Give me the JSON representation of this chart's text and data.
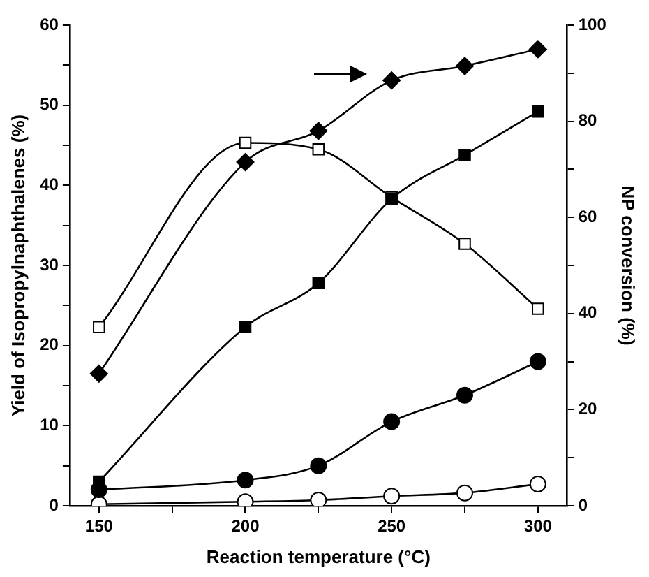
{
  "chart_data": {
    "type": "line",
    "xlabel": "Reaction temperature (°C)",
    "ylabel": "Yield of Isopropylnaphthalenes (%)",
    "y2label": "NP conversion (%)",
    "x": [
      150,
      200,
      225,
      250,
      275,
      300
    ],
    "xlim": [
      140,
      310
    ],
    "xticks": [
      150,
      {
        "value": 175,
        "label": null
      },
      200,
      {
        "value": 225,
        "label": null
      },
      250,
      {
        "value": 275,
        "label": null
      },
      300
    ],
    "ylim": [
      0,
      60
    ],
    "yticks": [
      0,
      {
        "value": 5,
        "label": null
      },
      10,
      {
        "value": 15,
        "label": null
      },
      20,
      {
        "value": 25,
        "label": null
      },
      30,
      {
        "value": 35,
        "label": null
      },
      40,
      {
        "value": 45,
        "label": null
      },
      50,
      {
        "value": 55,
        "label": null
      },
      60
    ],
    "y2lim": [
      0,
      100
    ],
    "y2ticks": [
      0,
      {
        "value": 10,
        "label": null
      },
      20,
      {
        "value": 30,
        "label": null
      },
      40,
      {
        "value": 50,
        "label": null
      },
      60,
      {
        "value": 70,
        "label": null
      },
      80,
      {
        "value": 90,
        "label": null
      },
      100
    ],
    "grid": false,
    "legend": false,
    "line_style": "solid",
    "series": [
      {
        "color": "#000000",
        "marker": "diamond",
        "axis": "y2",
        "values": [
          27.5,
          71.5,
          78,
          88.5,
          91.5,
          95
        ]
      },
      {
        "color": "#000000",
        "marker": "square",
        "values": [
          3,
          22.3,
          27.8,
          38.3,
          43.8,
          49.2
        ]
      },
      {
        "color": "#ffffff",
        "marker": "square",
        "values": [
          22.3,
          45.3,
          44.5,
          38.5,
          32.7,
          24.6
        ]
      },
      {
        "color": "#000000",
        "marker": "circle",
        "values": [
          2,
          3.2,
          5,
          10.5,
          13.8,
          18
        ]
      },
      {
        "color": "#ffffff",
        "marker": "circle",
        "values": [
          0.2,
          0.5,
          0.7,
          1.2,
          1.6,
          2.7
        ]
      }
    ]
  }
}
